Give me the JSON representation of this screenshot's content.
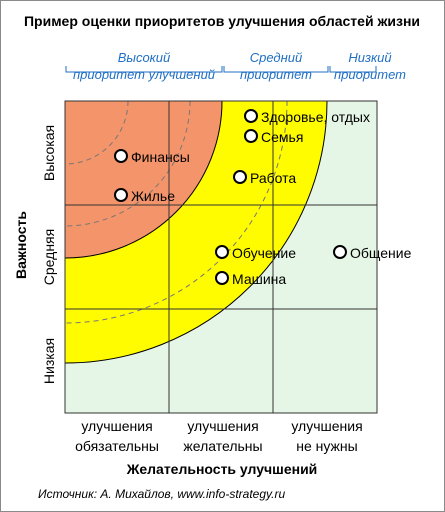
{
  "title": "Пример оценки приоритетов улучшения областей жизни",
  "top_groups": [
    {
      "lines": [
        "Высокий",
        "приоритет улучшений"
      ]
    },
    {
      "lines": [
        "Средний",
        "приоритет"
      ]
    },
    {
      "lines": [
        "Низкий",
        "приоритет"
      ]
    }
  ],
  "y_axis": {
    "title": "Важность",
    "levels": [
      "Высокая",
      "Средняя",
      "Низкая"
    ]
  },
  "x_axis": {
    "title": "Желательность улучшений",
    "levels": [
      [
        "улучшения",
        "обязательны"
      ],
      [
        "улучшения",
        "желательны"
      ],
      [
        "улучшения",
        "не нужны"
      ]
    ]
  },
  "items": [
    {
      "label": "Финансы"
    },
    {
      "label": "Жилье"
    },
    {
      "label": "Здоровье, отдых"
    },
    {
      "label": "Семья"
    },
    {
      "label": "Работа"
    },
    {
      "label": "Обучение"
    },
    {
      "label": "Машина"
    },
    {
      "label": "Общение"
    }
  ],
  "source": "Источник: А. Михайлов, www.info-strategy.ru",
  "colors": {
    "high_zone": "#f4946a",
    "medium_zone": "#fffc00",
    "low_zone": "#e6f6e6",
    "accent_text": "#1f6fc5",
    "grid": "#333333"
  }
}
